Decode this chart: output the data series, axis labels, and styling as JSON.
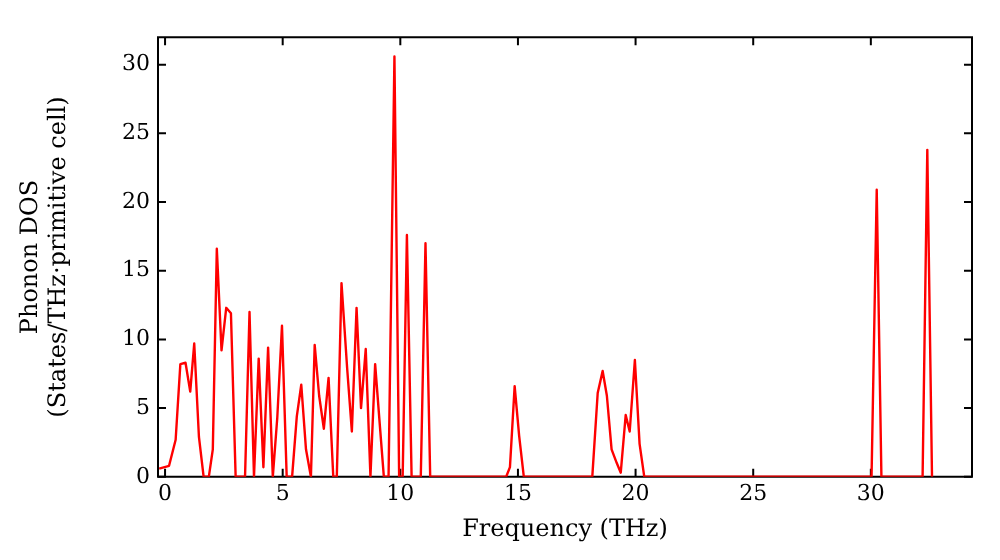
{
  "chart_data": {
    "type": "line",
    "xlabel": "Frequency (THz)",
    "ylabel": "Phonon DOS\n(States/THz·primitive cell)",
    "xlim": [
      -0.3,
      34.3
    ],
    "ylim": [
      0,
      32
    ],
    "xticks": [
      0,
      5,
      10,
      15,
      20,
      25,
      30
    ],
    "yticks": [
      0,
      5,
      10,
      15,
      20,
      25,
      30
    ],
    "grid": false,
    "legend": false,
    "marker": "none",
    "line_style": "solid",
    "series": [
      {
        "color": "#ff0000",
        "x": [
          -0.25,
          0.17,
          0.45,
          0.65,
          0.87,
          1.07,
          1.24,
          1.44,
          1.64,
          1.86,
          2.03,
          2.2,
          2.4,
          2.6,
          2.8,
          3.0,
          3.4,
          3.59,
          3.78,
          3.98,
          4.18,
          4.38,
          4.58,
          4.77,
          4.97,
          5.17,
          5.4,
          5.6,
          5.79,
          5.99,
          6.2,
          6.36,
          6.55,
          6.75,
          6.95,
          7.15,
          7.3,
          7.5,
          7.74,
          7.94,
          8.14,
          8.33,
          8.53,
          8.73,
          8.93,
          9.1,
          9.3,
          9.5,
          9.75,
          9.95,
          10.1,
          10.28,
          10.48,
          10.87,
          11.07,
          11.27,
          14.5,
          14.66,
          14.86,
          15.05,
          15.25,
          18.16,
          18.39,
          18.6,
          18.78,
          18.98,
          19.2,
          19.37,
          19.58,
          19.75,
          19.97,
          20.17,
          20.37,
          30.03,
          30.25,
          30.45,
          32.2,
          32.4,
          32.6
        ],
        "values": [
          0.6,
          0.8,
          2.7,
          8.2,
          8.3,
          6.2,
          9.7,
          2.9,
          0,
          0,
          2,
          16.6,
          9.2,
          12.3,
          11.9,
          0,
          0,
          12,
          0,
          8.6,
          0.7,
          9.4,
          0,
          4.3,
          11,
          0,
          0,
          4.4,
          6.7,
          2,
          0,
          9.6,
          5.9,
          3.5,
          7.2,
          0,
          0,
          14.1,
          7.9,
          3.3,
          12.3,
          5,
          9.3,
          0,
          8.2,
          4.4,
          0,
          0,
          30.6,
          0,
          0,
          17.6,
          0,
          0,
          17,
          0,
          0,
          0.7,
          6.6,
          3,
          0,
          0,
          6.1,
          7.7,
          5.9,
          2,
          1,
          0.3,
          4.5,
          3.3,
          8.5,
          2.4,
          0,
          0,
          20.9,
          0,
          0,
          23.8,
          0
        ]
      }
    ]
  }
}
